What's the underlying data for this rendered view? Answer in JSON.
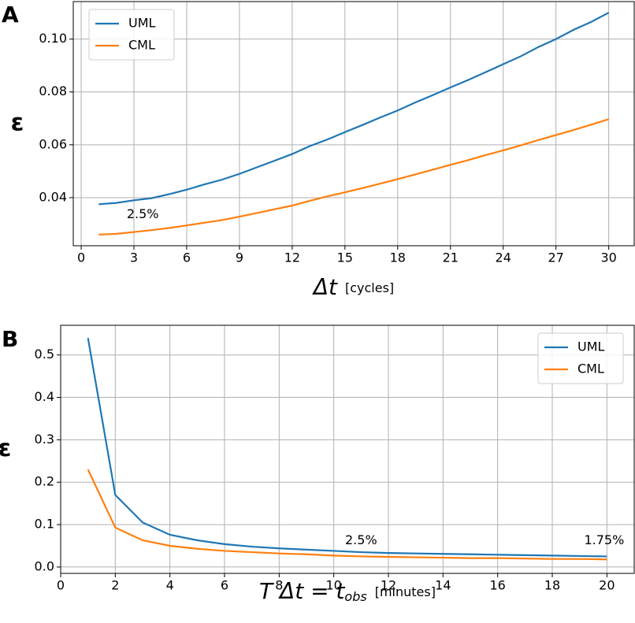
{
  "chart_data": [
    {
      "type": "line",
      "panel": "A",
      "ylabel": "ε",
      "xlabel": "Δt",
      "xlabel_unit": "[cycles]",
      "x": [
        1,
        2,
        3,
        4,
        5,
        6,
        7,
        8,
        9,
        10,
        11,
        12,
        13,
        14,
        15,
        16,
        17,
        18,
        19,
        20,
        21,
        22,
        23,
        24,
        25,
        26,
        27,
        28,
        29,
        30
      ],
      "series": [
        {
          "name": "UML",
          "color": "#1f77b4",
          "values": [
            0.0375,
            0.038,
            0.039,
            0.0398,
            0.0413,
            0.043,
            0.045,
            0.0468,
            0.049,
            0.0515,
            0.054,
            0.0565,
            0.0595,
            0.062,
            0.0648,
            0.0675,
            0.0703,
            0.073,
            0.076,
            0.0788,
            0.0817,
            0.0845,
            0.0875,
            0.0905,
            0.0935,
            0.097,
            0.1,
            0.1035,
            0.1065,
            0.11
          ]
        },
        {
          "name": "CML",
          "color": "#ff7f0e",
          "values": [
            0.026,
            0.0263,
            0.027,
            0.0277,
            0.0285,
            0.0295,
            0.0305,
            0.0315,
            0.0328,
            0.0342,
            0.0356,
            0.037,
            0.0388,
            0.0405,
            0.042,
            0.0436,
            0.0453,
            0.047,
            0.0488,
            0.0506,
            0.0524,
            0.0542,
            0.0561,
            0.0579,
            0.0598,
            0.0618,
            0.0637,
            0.0656,
            0.0676,
            0.0697
          ]
        }
      ],
      "xlim": [
        -0.45,
        31.45
      ],
      "xticks": [
        0,
        3,
        6,
        9,
        12,
        15,
        18,
        21,
        24,
        27,
        30
      ],
      "ylim": [
        0.0218,
        0.1142
      ],
      "yticks": [
        {
          "value": 0.04,
          "label": "0.04"
        },
        {
          "value": 0.06,
          "label": "0.06"
        },
        {
          "value": 0.08,
          "label": "0.08"
        },
        {
          "value": 0.1,
          "label": "0.10"
        }
      ],
      "grid": true,
      "legend": "upper left",
      "annotations": [
        {
          "text": "2.5%",
          "x": 3.5,
          "y": 0.0335,
          "color": "#8b0000"
        }
      ]
    },
    {
      "type": "line",
      "panel": "B",
      "ylabel": "ε",
      "xlabel": "T Δt = t",
      "xlabel_sub": "obs",
      "xlabel_unit": "[minutes]",
      "x": [
        1,
        2,
        3,
        4,
        5,
        6,
        7,
        8,
        9,
        10,
        11,
        12,
        13,
        14,
        15,
        16,
        17,
        18,
        19,
        20
      ],
      "series": [
        {
          "name": "UML",
          "color": "#1f77b4",
          "values": [
            0.54,
            0.17,
            0.105,
            0.076,
            0.063,
            0.054,
            0.048,
            0.044,
            0.041,
            0.038,
            0.035,
            0.033,
            0.032,
            0.031,
            0.03,
            0.029,
            0.028,
            0.027,
            0.026,
            0.025
          ]
        },
        {
          "name": "CML",
          "color": "#ff7f0e",
          "values": [
            0.23,
            0.093,
            0.063,
            0.05,
            0.043,
            0.038,
            0.035,
            0.032,
            0.03,
            0.027,
            0.025,
            0.024,
            0.023,
            0.022,
            0.021,
            0.021,
            0.02,
            0.019,
            0.019,
            0.018
          ]
        }
      ],
      "xlim": [
        0,
        21
      ],
      "xticks": [
        0,
        2,
        4,
        6,
        8,
        10,
        12,
        14,
        16,
        18,
        20
      ],
      "ylim": [
        -0.015,
        0.57
      ],
      "yticks": [
        {
          "value": 0,
          "label": "0.0"
        },
        0.1,
        0.2,
        0.3,
        0.4,
        0.5
      ],
      "grid": true,
      "legend": "upper right",
      "annotations": [
        {
          "text": "2.5%",
          "x": 11,
          "y": 0.062,
          "color": "#8b0000"
        },
        {
          "text": "1.75%",
          "x": 19.9,
          "y": 0.062,
          "color": "#8b0000"
        }
      ]
    }
  ]
}
